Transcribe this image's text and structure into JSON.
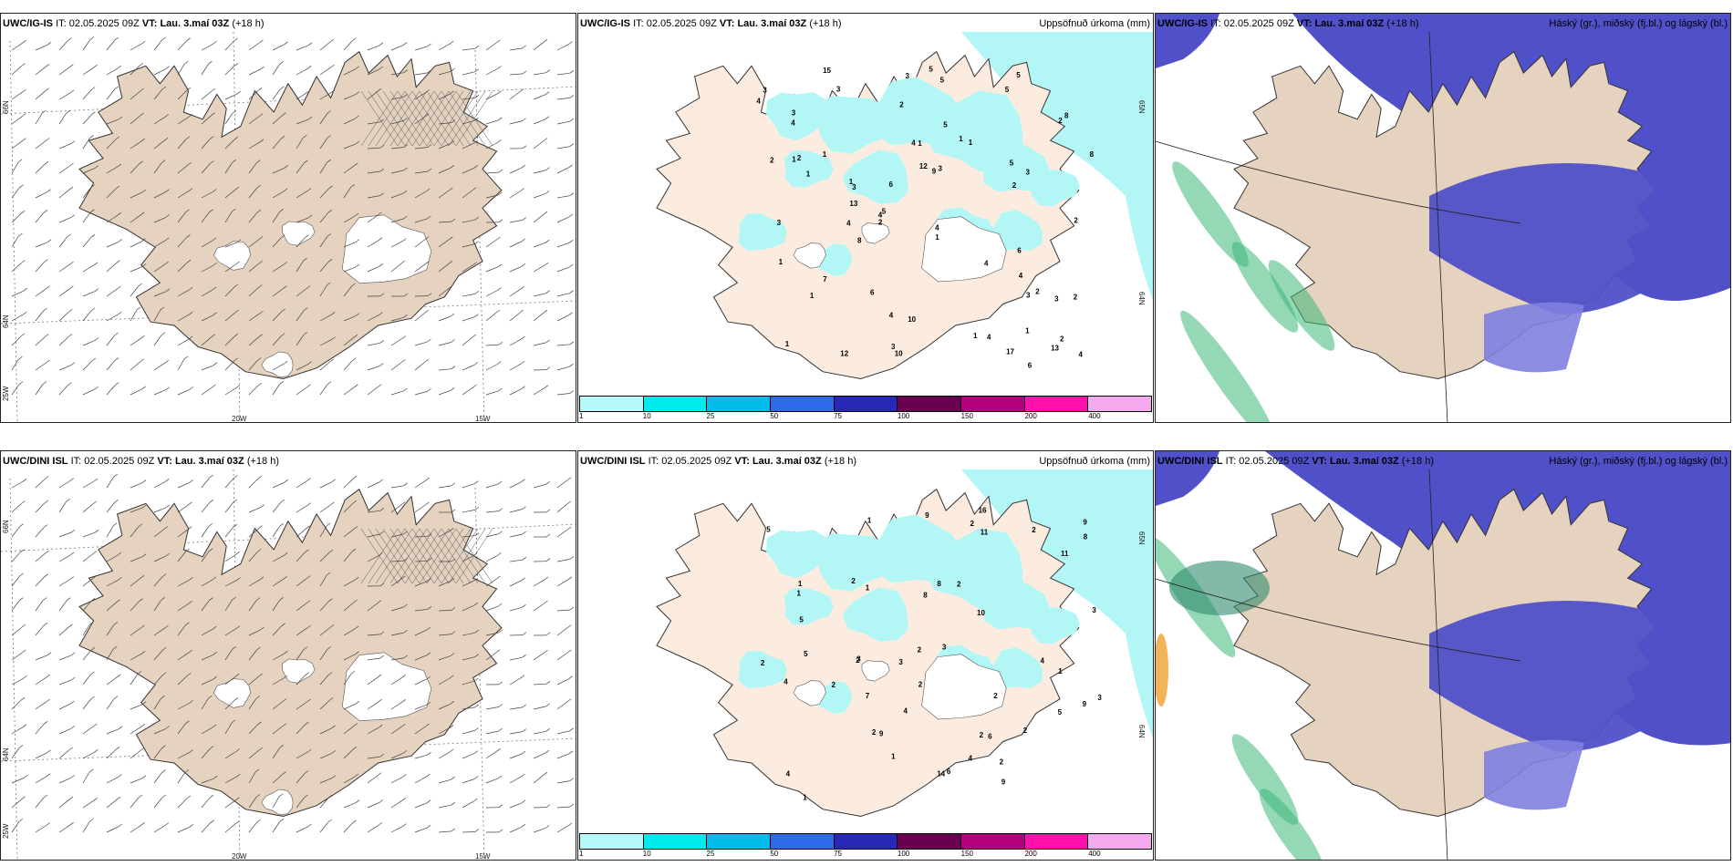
{
  "panels": [
    {
      "model": "UWC/IG-IS",
      "it_label": "IT:",
      "it_value": "02.05.2025 09Z",
      "vt_label": "VT:",
      "vt_value": "Lau. 3.maí 03Z",
      "lead": "(+18 h)",
      "right_title": "",
      "type": "wind",
      "lat_labels": [
        "66N",
        "64N",
        "25W"
      ],
      "lon_labels": [
        "20W",
        "15W"
      ]
    },
    {
      "model": "UWC/IG-IS",
      "it_label": "IT:",
      "it_value": "02.05.2025 09Z",
      "vt_label": "VT:",
      "vt_value": "Lau. 3.maí 03Z",
      "lead": "(+18 h)",
      "right_title": "Uppsöfnuð úrkoma (mm)",
      "type": "precip",
      "lat_labels": [
        "65N",
        "64N"
      ],
      "values": [
        "1",
        "1",
        "1",
        "3",
        "3",
        "15",
        "10",
        "6",
        "7",
        "9",
        "2",
        "13",
        "5",
        "4",
        "5",
        "5",
        "4",
        "12",
        "1",
        "2",
        "4",
        "8",
        "4",
        "17",
        "12",
        "3",
        "4",
        "8",
        "2",
        "1",
        "6",
        "4",
        "3",
        "2",
        "6",
        "3",
        "1",
        "3",
        "4",
        "1",
        "10",
        "2",
        "6",
        "1",
        "2",
        "1",
        "5",
        "2",
        "4",
        "5",
        "8",
        "4",
        "2",
        "5",
        "3",
        "3",
        "13",
        "4",
        "5",
        "3",
        "4",
        "3",
        "1",
        "2",
        "3",
        "1",
        "2",
        "1",
        "1"
      ]
    },
    {
      "model": "UWC/IG-IS",
      "it_label": "IT:",
      "it_value": "02.05.2025 09Z",
      "vt_label": "VT:",
      "vt_value": "Lau. 3.maí 03Z",
      "lead": "(+18 h)",
      "right_title": "Háský (gr.), miðský (fj.bl.) og lágský (bl.)",
      "type": "cloud"
    },
    {
      "model": "UWC/DINI ISL",
      "it_label": "IT:",
      "it_value": "02.05.2025 09Z",
      "vt_label": "VT:",
      "vt_value": "Lau. 3.maí 03Z",
      "lead": "(+18 h)",
      "right_title": "",
      "type": "wind",
      "lat_labels": [
        "66N",
        "64N",
        "25W"
      ],
      "lon_labels": [
        "20W",
        "15W"
      ]
    },
    {
      "model": "UWC/DINI ISL",
      "it_label": "IT:",
      "it_value": "02.05.2025 09Z",
      "vt_label": "VT:",
      "vt_value": "Lau. 3.maí 03Z",
      "lead": "(+18 h)",
      "right_title": "Uppsöfnuð úrkoma (mm)",
      "type": "precip",
      "lat_labels": [
        "65N",
        "64N"
      ],
      "values": [
        "2",
        "2",
        "9",
        "11",
        "16",
        "9",
        "1",
        "8",
        "8",
        "5",
        "5",
        "4",
        "9",
        "5",
        "3",
        "9",
        "2",
        "3",
        "2",
        "2",
        "3",
        "2",
        "6",
        "8",
        "2",
        "6",
        "2",
        "3",
        "2",
        "1",
        "2",
        "11",
        "4",
        "3",
        "10",
        "7",
        "2",
        "9",
        "1",
        "1",
        "5",
        "4",
        "4",
        "14",
        "4",
        "2",
        "2",
        "1",
        "1",
        "2",
        "1"
      ]
    },
    {
      "model": "UWC/DINI ISL",
      "it_label": "IT:",
      "it_value": "02.05.2025 09Z",
      "vt_label": "VT:",
      "vt_value": "Lau. 3.maí 03Z",
      "lead": "(+18 h)",
      "right_title": "Háský (gr.), miðský (fj.bl.) og lágský (bl.)",
      "type": "cloud"
    }
  ],
  "legend": {
    "ticks": [
      "1",
      "10",
      "25",
      "50",
      "75",
      "100",
      "150",
      "200",
      "400"
    ],
    "colors": [
      "#b6fafa",
      "#00ecec",
      "#00bde8",
      "#2f6be8",
      "#2828b8",
      "#6a0050",
      "#b4007d",
      "#ff10a8",
      "#f5aaf0"
    ]
  },
  "colors": {
    "land_wind": "#e6d3bf",
    "land_precip": "#fcece0",
    "precip_light": "#b3f6f6",
    "cloud_mid": "#5050c8",
    "cloud_low": "#8080e0",
    "cloud_high": "#3cb878"
  }
}
